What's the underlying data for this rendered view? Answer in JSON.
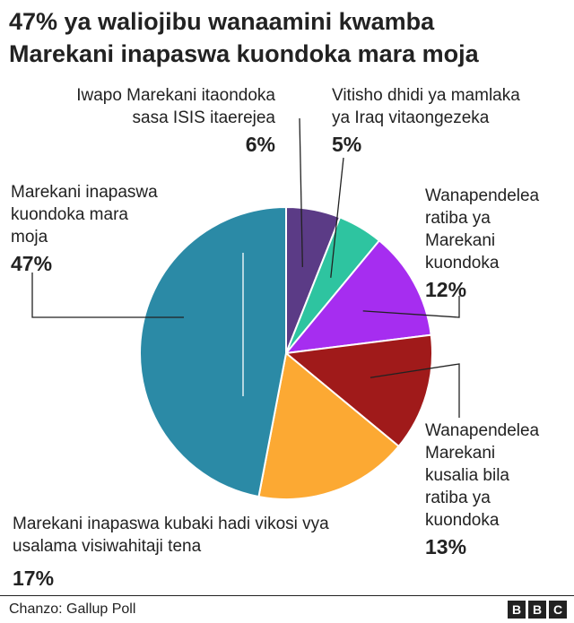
{
  "title_lines": [
    "47% ya waliojibu wanaamini kwamba",
    "Marekani inapaswa kuondoka mara moja"
  ],
  "source": "Chanzo: Gallup Poll",
  "logo": [
    "B",
    "B",
    "C"
  ],
  "chart_data": {
    "type": "pie",
    "start_angle_deg": 0,
    "direction": "clockwise",
    "slices": [
      {
        "label": "Iwapo Marekani itaondoka\nsasa ISIS itaerejea",
        "value": 6,
        "value_label": "6%",
        "color": "#5b3b86"
      },
      {
        "label": "Vitisho dhidi ya mamlaka\nya Iraq vitaongezeka",
        "value": 5,
        "value_label": "5%",
        "color": "#2ec4a0"
      },
      {
        "label": "Wanapendelea\nratiba ya\nMarekani\nkuondoka",
        "value": 12,
        "value_label": "12%",
        "color": "#a62df0"
      },
      {
        "label": "Wanapendelea\nMarekani\nkusalia  bila\nratiba ya\nkuondoka",
        "value": 13,
        "value_label": "13%",
        "color": "#a01a1a"
      },
      {
        "label": "Marekani inapaswa kubaki hadi vikosi vya\nusalama visiwahitaji tena",
        "value": 17,
        "value_label": "17%",
        "color": "#fca933"
      },
      {
        "label": "Marekani inapaswa\nkuondoka mara\nmoja",
        "value": 47,
        "value_label": "47%",
        "color": "#2b8aa6"
      }
    ]
  }
}
